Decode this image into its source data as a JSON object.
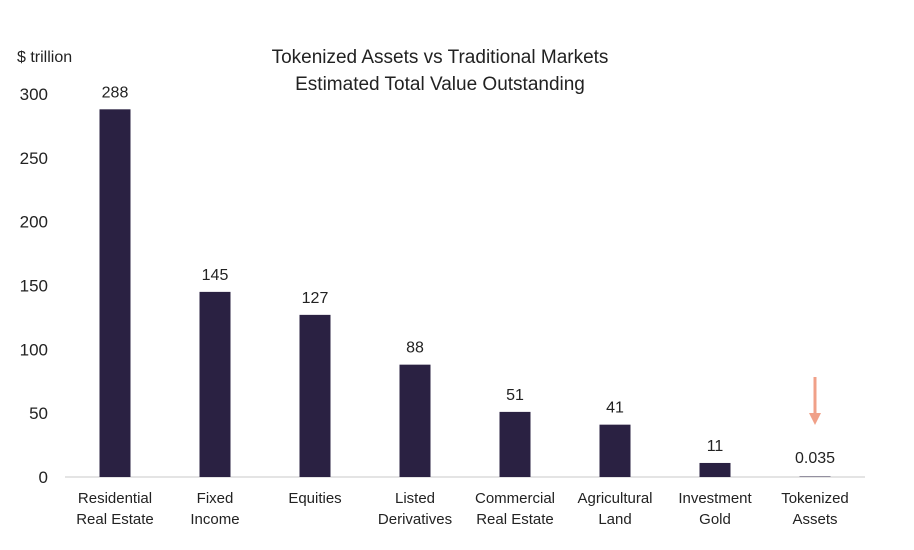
{
  "chart_data": {
    "type": "bar",
    "title": [
      "Tokenized Assets vs Traditional Markets",
      "Estimated Total Value Outstanding"
    ],
    "unit_label": "$ trillion",
    "ylim": [
      0,
      300
    ],
    "yticks": [
      0,
      50,
      100,
      150,
      200,
      250,
      300
    ],
    "grid": false,
    "legend": "none",
    "categories": [
      [
        "Residential",
        "Real Estate"
      ],
      [
        "Fixed",
        "Income"
      ],
      [
        "Equities"
      ],
      [
        "Listed",
        "Derivatives"
      ],
      [
        "Commercial",
        "Real Estate"
      ],
      [
        "Agricultural",
        "Land"
      ],
      [
        "Investment",
        "Gold"
      ],
      [
        "Tokenized",
        "Assets"
      ]
    ],
    "values": [
      288,
      145,
      127,
      88,
      51,
      41,
      11,
      0.035
    ],
    "value_labels": [
      "288",
      "145",
      "127",
      "88",
      "51",
      "41",
      "11",
      "0.035"
    ],
    "bar_color": "#2a2142",
    "arrow_color": "#f0a088",
    "arrow_marks_category": "Tokenized Assets"
  }
}
